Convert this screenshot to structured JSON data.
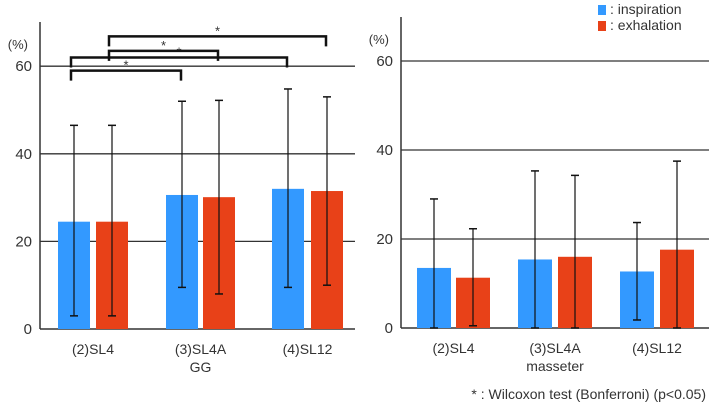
{
  "chart_data": [
    {
      "type": "bar",
      "title": "",
      "ylabel": "(%)",
      "xlabel": "",
      "ylim": [
        0,
        70
      ],
      "yticks": [
        0,
        20,
        40,
        60
      ],
      "grid": true,
      "categories": [
        [
          "(2)SL4"
        ],
        [
          "(3)SL4A",
          "GG"
        ],
        [
          "(4)SL12"
        ]
      ],
      "series": [
        {
          "name": "inspiration",
          "color": "#3399ff",
          "values": [
            24.5,
            30.6,
            32.0
          ],
          "err_low": [
            3,
            9.5,
            9.5
          ],
          "err_high": [
            46.5,
            52,
            54.8
          ]
        },
        {
          "name": "exhalation",
          "color": "#e84118",
          "values": [
            24.5,
            30.1,
            31.5
          ],
          "err_low": [
            3,
            8,
            10
          ],
          "err_high": [
            46.5,
            52.2,
            53
          ]
        }
      ],
      "significance": [
        {
          "series": 0,
          "from": 0,
          "to": 1,
          "label": "*",
          "level": 59
        },
        {
          "series": 0,
          "from": 0,
          "to": 2,
          "label": "*",
          "level": 62
        },
        {
          "series": 1,
          "from": 0,
          "to": 1,
          "label": "*",
          "level": 63.5
        },
        {
          "series": 1,
          "from": 0,
          "to": 2,
          "label": "*",
          "level": 66.8
        }
      ]
    },
    {
      "type": "bar",
      "title": "",
      "ylabel": "(%)",
      "xlabel": "",
      "ylim": [
        0,
        70
      ],
      "yticks": [
        0,
        20,
        40,
        60
      ],
      "grid": true,
      "categories": [
        [
          "(2)SL4"
        ],
        [
          "(3)SL4A",
          "masseter"
        ],
        [
          "(4)SL12"
        ]
      ],
      "series": [
        {
          "name": "inspiration",
          "color": "#3399ff",
          "values": [
            13.5,
            15.4,
            12.7
          ],
          "err_low": [
            0,
            0,
            1.8
          ],
          "err_high": [
            29,
            35.3,
            23.7
          ]
        },
        {
          "name": "exhalation",
          "color": "#e84118",
          "values": [
            11.3,
            16.0,
            17.6
          ],
          "err_low": [
            0.5,
            0,
            0
          ],
          "err_high": [
            22.3,
            34.3,
            37.5
          ]
        }
      ]
    }
  ],
  "legend": {
    "placement": "top-right",
    "items": [
      ": inspiration",
      ": exhalation"
    ]
  },
  "footnote": "* : Wilcoxon test (Bonferroni) (p<0.05)"
}
